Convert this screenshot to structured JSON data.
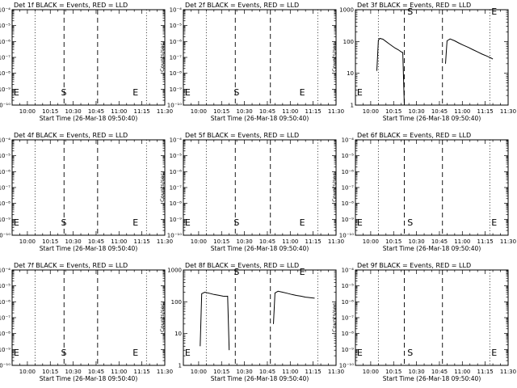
{
  "chart_data": [
    {
      "type": "line",
      "title": "Det 1f BLACK = Events, RED = LLD",
      "xlabel": "Start Time (26-Mar-18 09:50:40)",
      "ylabel": "Counts/sec",
      "yscale": "log",
      "ylim": [
        1e-10,
        0.0001
      ],
      "yticks": [
        "10⁻¹⁰",
        "10⁻⁹",
        "10⁻⁸",
        "10⁻⁷",
        "10⁻⁶",
        "10⁻⁵",
        "10⁻⁴"
      ],
      "xticks": [
        "10:00",
        "10:15",
        "10:30",
        "10:45",
        "11:00",
        "11:15",
        "11:30"
      ],
      "xlim": [
        "09:50",
        "11:30"
      ],
      "markers": [
        {
          "t": "09:51",
          "label": "E"
        },
        {
          "t": "10:22",
          "label": "S"
        },
        {
          "t": "11:09",
          "label": "E"
        }
      ],
      "dotted_lines": [
        "10:05",
        "11:18"
      ],
      "dashed_lines": [
        "10:24",
        "10:46"
      ],
      "series": []
    },
    {
      "type": "line",
      "title": "Det 2f BLACK = Events, RED = LLD",
      "xlabel": "Start Time (26-Mar-18 09:50:40)",
      "ylabel": "Counts/sec",
      "yscale": "log",
      "ylim": [
        1e-10,
        0.0001
      ],
      "yticks": [
        "10⁻¹⁰",
        "10⁻⁹",
        "10⁻⁸",
        "10⁻⁷",
        "10⁻⁶",
        "10⁻⁵",
        "10⁻⁴"
      ],
      "xticks": [
        "10:00",
        "10:15",
        "10:30",
        "10:45",
        "11:00",
        "11:15",
        "11:30"
      ],
      "xlim": [
        "09:50",
        "11:30"
      ],
      "markers": [
        {
          "t": "09:51",
          "label": "E"
        },
        {
          "t": "10:23",
          "label": "S"
        },
        {
          "t": "11:06",
          "label": "E"
        }
      ],
      "dotted_lines": [
        "10:05",
        "11:18"
      ],
      "dashed_lines": [
        "10:24",
        "10:47"
      ],
      "series": []
    },
    {
      "type": "line",
      "title": "Det 3f BLACK = Events, RED = LLD",
      "xlabel": "Start Time (26-Mar-18 09:50:40)",
      "ylabel": "Counts/sec",
      "yscale": "log",
      "ylim": [
        1,
        1000
      ],
      "yticks": [
        "1",
        "10",
        "100",
        "1000"
      ],
      "xticks": [
        "10:00",
        "10:15",
        "10:30",
        "10:45",
        "11:00",
        "11:15",
        "11:30"
      ],
      "xlim": [
        "09:50",
        "11:30"
      ],
      "markers": [
        {
          "t": "09:51",
          "label": "E"
        },
        {
          "t": "10:24",
          "label": "S"
        },
        {
          "t": "11:19",
          "label": "E"
        }
      ],
      "dotted_lines": [
        "10:05",
        "11:18"
      ],
      "dashed_lines": [
        "10:22",
        "10:47"
      ],
      "series": [
        {
          "points": [
            [
              "10:04",
              12
            ],
            [
              "10:05",
              110
            ],
            [
              "10:06",
              125
            ],
            [
              "10:08",
              118
            ],
            [
              "10:10",
              100
            ],
            [
              "10:12",
              85
            ],
            [
              "10:14",
              72
            ],
            [
              "10:16",
              62
            ],
            [
              "10:18",
              55
            ],
            [
              "10:20",
              47
            ],
            [
              "10:21",
              45
            ],
            [
              "10:22",
              1
            ]
          ]
        },
        {
          "points": [
            [
              "10:49",
              20
            ],
            [
              "10:50",
              105
            ],
            [
              "10:52",
              120
            ],
            [
              "10:55",
              105
            ],
            [
              "10:58",
              88
            ],
            [
              "11:01",
              75
            ],
            [
              "11:04",
              65
            ],
            [
              "11:07",
              55
            ],
            [
              "11:10",
              47
            ],
            [
              "11:13",
              40
            ],
            [
              "11:16",
              35
            ],
            [
              "11:19",
              30
            ],
            [
              "11:20",
              28
            ]
          ]
        }
      ]
    },
    {
      "type": "line",
      "title": "Det 4f BLACK = Events, RED = LLD",
      "xlabel": "Start Time (26-Mar-18 09:50:40)",
      "ylabel": "Counts/sec",
      "yscale": "log",
      "ylim": [
        1e-10,
        0.0001
      ],
      "yticks": [
        "10⁻¹⁰",
        "10⁻⁹",
        "10⁻⁸",
        "10⁻⁷",
        "10⁻⁶",
        "10⁻⁵",
        "10⁻⁴"
      ],
      "xticks": [
        "10:00",
        "10:15",
        "10:30",
        "10:45",
        "11:00",
        "11:15",
        "11:30"
      ],
      "xlim": [
        "09:50",
        "11:30"
      ],
      "markers": [
        {
          "t": "09:51",
          "label": "E"
        },
        {
          "t": "10:22",
          "label": "S"
        },
        {
          "t": "11:09",
          "label": "E"
        }
      ],
      "dotted_lines": [
        "10:05",
        "11:18"
      ],
      "dashed_lines": [
        "10:24",
        "10:46"
      ],
      "series": []
    },
    {
      "type": "line",
      "title": "Det 5f BLACK = Events, RED = LLD",
      "xlabel": "Start Time (26-Mar-18 09:50:40)",
      "ylabel": "Counts/sec",
      "yscale": "log",
      "ylim": [
        1e-10,
        0.0001
      ],
      "yticks": [
        "10⁻¹⁰",
        "10⁻⁹",
        "10⁻⁸",
        "10⁻⁷",
        "10⁻⁶",
        "10⁻⁵",
        "10⁻⁴"
      ],
      "xticks": [
        "10:00",
        "10:15",
        "10:30",
        "10:45",
        "11:00",
        "11:15",
        "11:30"
      ],
      "xlim": [
        "09:50",
        "11:30"
      ],
      "markers": [
        {
          "t": "09:51",
          "label": "E"
        },
        {
          "t": "10:23",
          "label": "S"
        },
        {
          "t": "11:06",
          "label": "E"
        }
      ],
      "dotted_lines": [
        "10:05",
        "11:18"
      ],
      "dashed_lines": [
        "10:24",
        "10:47"
      ],
      "series": []
    },
    {
      "type": "line",
      "title": "Det 6f BLACK = Events, RED = LLD",
      "xlabel": "Start Time (26-Mar-18 09:50:40)",
      "ylabel": "Counts/sec",
      "yscale": "log",
      "ylim": [
        1e-10,
        0.0001
      ],
      "yticks": [
        "10⁻¹⁰",
        "10⁻⁹",
        "10⁻⁸",
        "10⁻⁷",
        "10⁻⁶",
        "10⁻⁵",
        "10⁻⁴"
      ],
      "xticks": [
        "10:00",
        "10:15",
        "10:30",
        "10:45",
        "11:00",
        "11:15",
        "11:30"
      ],
      "xlim": [
        "09:50",
        "11:30"
      ],
      "markers": [
        {
          "t": "09:51",
          "label": "E"
        },
        {
          "t": "10:24",
          "label": "S"
        },
        {
          "t": "11:19",
          "label": "E"
        }
      ],
      "dotted_lines": [
        "10:05",
        "11:18"
      ],
      "dashed_lines": [
        "10:22",
        "10:47"
      ],
      "series": []
    },
    {
      "type": "line",
      "title": "Det 7f BLACK = Events, RED = LLD",
      "xlabel": "Start Time (26-Mar-18 09:50:40)",
      "ylabel": "Counts/sec",
      "yscale": "log",
      "ylim": [
        1e-10,
        0.0001
      ],
      "yticks": [
        "10⁻¹⁰",
        "10⁻⁹",
        "10⁻⁸",
        "10⁻⁷",
        "10⁻⁶",
        "10⁻⁵",
        "10⁻⁴"
      ],
      "xticks": [
        "10:00",
        "10:15",
        "10:30",
        "10:45",
        "11:00",
        "11:15",
        "11:30"
      ],
      "xlim": [
        "09:50",
        "11:30"
      ],
      "markers": [
        {
          "t": "09:51",
          "label": "E"
        },
        {
          "t": "10:22",
          "label": "S"
        },
        {
          "t": "11:09",
          "label": "E"
        }
      ],
      "dotted_lines": [
        "10:05",
        "11:18"
      ],
      "dashed_lines": [
        "10:24",
        "10:46"
      ],
      "series": []
    },
    {
      "type": "line",
      "title": "Det 8f BLACK = Events, RED = LLD",
      "xlabel": "Start Time (26-Mar-18 09:50:40)",
      "ylabel": "Counts/sec",
      "yscale": "log",
      "ylim": [
        1,
        1000
      ],
      "yticks": [
        "1",
        "10",
        "100",
        "1000"
      ],
      "xticks": [
        "10:00",
        "10:15",
        "10:30",
        "10:45",
        "11:00",
        "11:15",
        "11:30"
      ],
      "xlim": [
        "09:50",
        "11:30"
      ],
      "markers": [
        {
          "t": "09:51",
          "label": "E"
        },
        {
          "t": "10:23",
          "label": "S"
        },
        {
          "t": "11:06",
          "label": "E"
        }
      ],
      "dotted_lines": [
        "10:05",
        "11:18"
      ],
      "dashed_lines": [
        "10:24",
        "10:47"
      ],
      "series": [
        {
          "points": [
            [
              "10:01",
              4
            ],
            [
              "10:02",
              180
            ],
            [
              "10:04",
              200
            ],
            [
              "10:07",
              185
            ],
            [
              "10:10",
              170
            ],
            [
              "10:13",
              160
            ],
            [
              "10:16",
              150
            ],
            [
              "10:18",
              148
            ],
            [
              "10:19",
              150
            ],
            [
              "10:20",
              3
            ]
          ]
        },
        {
          "points": [
            [
              "10:49",
              20
            ],
            [
              "10:50",
              190
            ],
            [
              "10:52",
              215
            ],
            [
              "10:55",
              200
            ],
            [
              "10:58",
              185
            ],
            [
              "11:01",
              170
            ],
            [
              "11:04",
              158
            ],
            [
              "11:07",
              150
            ],
            [
              "11:10",
              140
            ],
            [
              "11:13",
              135
            ],
            [
              "11:16",
              130
            ]
          ]
        }
      ]
    },
    {
      "type": "line",
      "title": "Det 9f BLACK = Events, RED = LLD",
      "xlabel": "Start Time (26-Mar-18 09:50:40)",
      "ylabel": "Counts/sec",
      "yscale": "log",
      "ylim": [
        1e-10,
        0.0001
      ],
      "yticks": [
        "10⁻¹⁰",
        "10⁻⁹",
        "10⁻⁸",
        "10⁻⁷",
        "10⁻⁶",
        "10⁻⁵",
        "10⁻⁴"
      ],
      "xticks": [
        "10:00",
        "10:15",
        "10:30",
        "10:45",
        "11:00",
        "11:15",
        "11:30"
      ],
      "xlim": [
        "09:50",
        "11:30"
      ],
      "markers": [
        {
          "t": "09:51",
          "label": "E"
        },
        {
          "t": "10:24",
          "label": "S"
        },
        {
          "t": "11:19",
          "label": "E"
        }
      ],
      "dotted_lines": [
        "10:05",
        "11:18"
      ],
      "dashed_lines": [
        "10:22",
        "10:47"
      ],
      "series": []
    }
  ]
}
